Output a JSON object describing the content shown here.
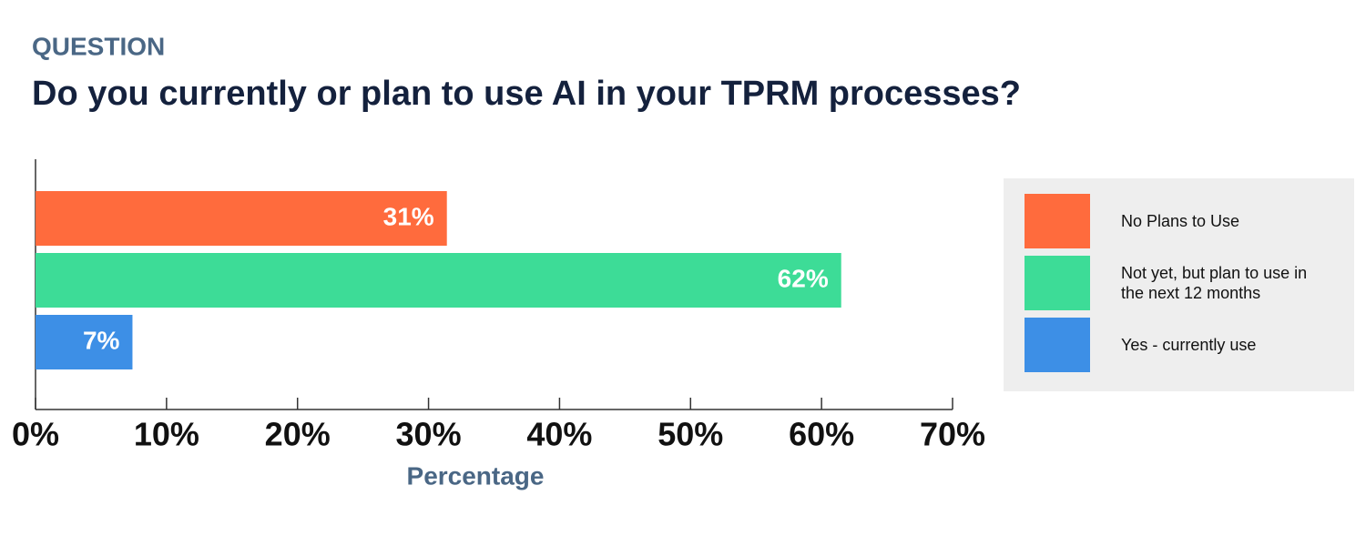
{
  "header": "QUESTION",
  "chart_data": {
    "type": "bar",
    "orientation": "horizontal",
    "title": "Do you currently or plan to use AI in your TPRM processes?",
    "xlabel": "Percentage",
    "categories": [
      null
    ],
    "series": [
      {
        "name": "No Plans to Use",
        "color": "#ff6b3d",
        "values": [
          31.4
        ],
        "value_labels": [
          "31%"
        ]
      },
      {
        "name": "Not yet, but plan to use in the next 12 months",
        "color": "#3ddc97",
        "values": [
          61.5
        ],
        "value_labels": [
          "62%"
        ]
      },
      {
        "name": "Yes - currently use",
        "color": "#3d8fe6",
        "values": [
          7.4
        ],
        "value_labels": [
          "7%"
        ]
      }
    ],
    "xlim": [
      0,
      70
    ],
    "xticks": [
      {
        "value": 0,
        "label": "0%"
      },
      {
        "value": 10,
        "label": "10%"
      },
      {
        "value": 20,
        "label": "20%"
      },
      {
        "value": 30,
        "label": "30%"
      },
      {
        "value": 40,
        "label": "40%"
      },
      {
        "value": 50,
        "label": "50%"
      },
      {
        "value": 60,
        "label": "60%"
      },
      {
        "value": 70,
        "label": "70%"
      }
    ],
    "legend": "right"
  }
}
